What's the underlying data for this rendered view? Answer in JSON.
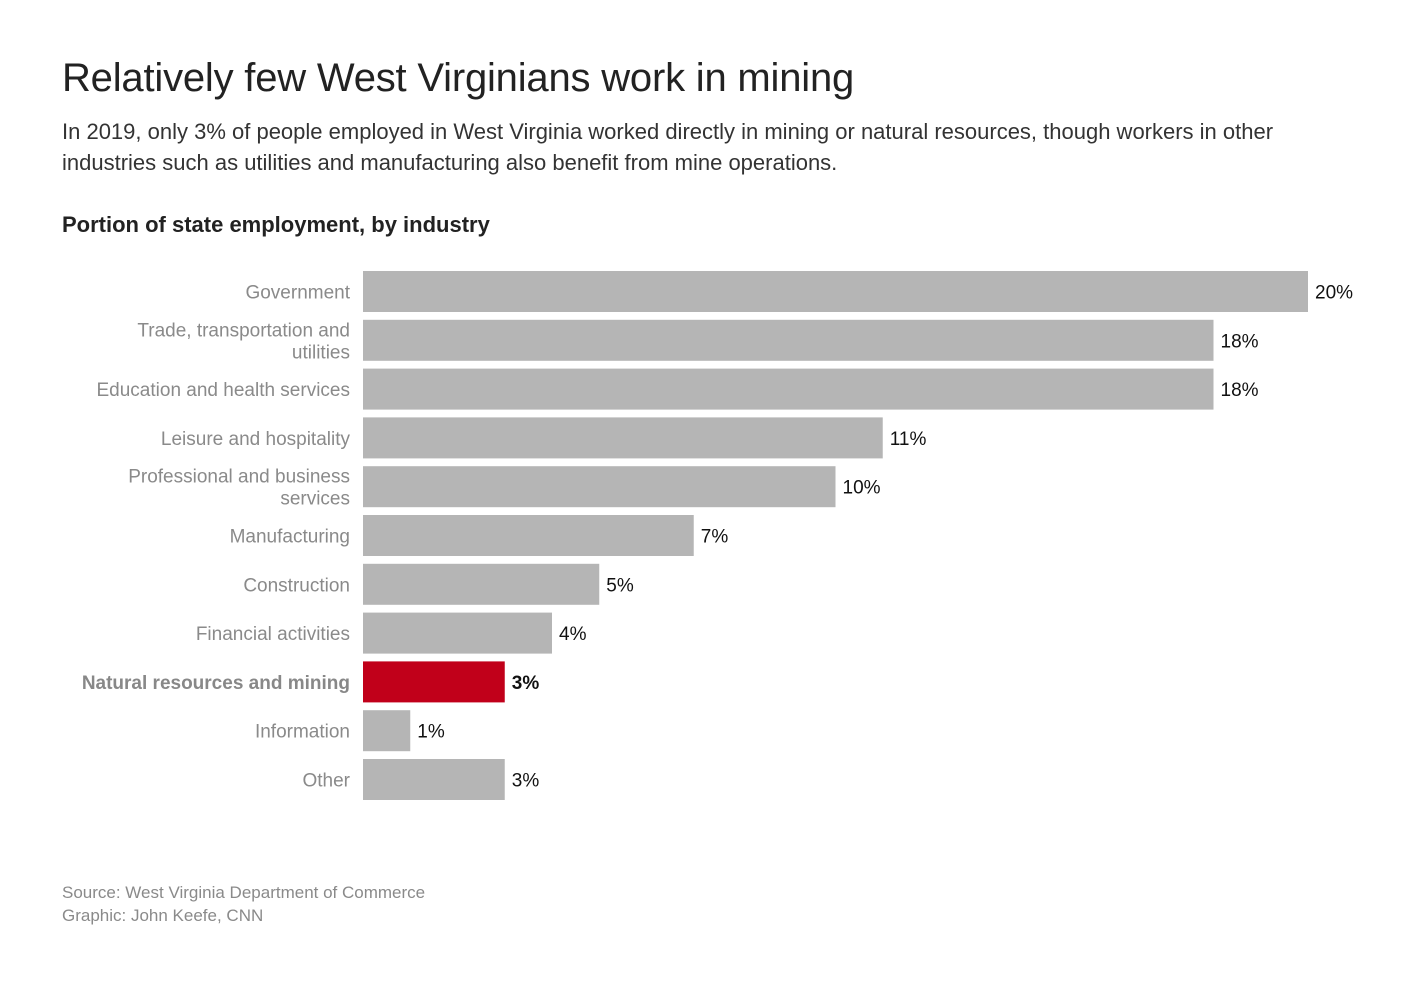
{
  "title": "Relatively few West Virginians work in mining",
  "subtitle": "In 2019, only 3% of people employed in West Virginia worked directly in mining or natural resources, though workers in other industries such as utilities and manufacturing also benefit from mine operations.",
  "footer": {
    "source": "Source: West Virginia Department of Commerce",
    "credit": "Graphic: John Keefe, CNN"
  },
  "chart_data": {
    "type": "bar",
    "orientation": "horizontal",
    "title": "Portion of state employment, by industry",
    "categories": [
      [
        "Government"
      ],
      [
        "Trade, transportation and",
        "utilities"
      ],
      [
        "Education and health services"
      ],
      [
        "Leisure and hospitality"
      ],
      [
        "Professional and business",
        "services"
      ],
      [
        "Manufacturing"
      ],
      [
        "Construction"
      ],
      [
        "Financial activities"
      ],
      [
        "Natural resources and mining"
      ],
      [
        "Information"
      ],
      [
        "Other"
      ]
    ],
    "values": [
      20,
      18,
      18,
      11,
      10,
      7,
      5,
      4,
      3,
      1,
      3
    ],
    "value_labels": [
      "20%",
      "18%",
      "18%",
      "11%",
      "10%",
      "7%",
      "5%",
      "4%",
      "3%",
      "1%",
      "3%"
    ],
    "highlight_index": 8,
    "colors": {
      "default": "#b5b5b5",
      "highlight": "#c1001a"
    },
    "xlim": [
      0,
      20
    ],
    "grid": false,
    "legend": "none"
  }
}
